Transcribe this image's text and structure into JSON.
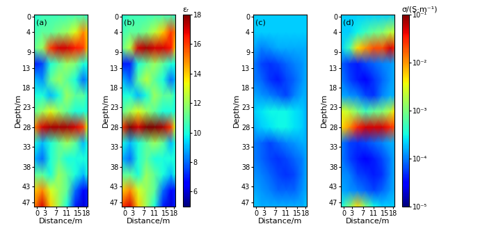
{
  "chart_data": [
    {
      "type": "heatmap",
      "label": "(a)",
      "x_label": "Distance/m",
      "y_label": "Depth/m",
      "x": [
        -1,
        2,
        5,
        8,
        11,
        14,
        17,
        18.5
      ],
      "y": [
        -0.5,
        4,
        8,
        12,
        16,
        20,
        24,
        28,
        32,
        36,
        40,
        44,
        48
      ],
      "xlim": [
        -1,
        18.5
      ],
      "ylim": [
        48,
        -0.5
      ],
      "xticks": [
        0,
        3,
        7,
        11,
        15,
        18
      ],
      "yticks": [
        0,
        4,
        9,
        13,
        18,
        23,
        28,
        33,
        38,
        43,
        47
      ],
      "cells": [
        [
          10,
          10.5,
          10.5,
          10.5,
          10.5,
          10.5,
          10.5,
          10
        ],
        [
          10.5,
          11,
          11,
          11.5,
          12,
          13,
          15,
          14
        ],
        [
          11,
          12,
          16,
          17,
          17,
          16.5,
          16,
          14
        ],
        [
          7,
          7.5,
          10,
          11,
          12,
          11.5,
          10,
          10
        ],
        [
          9,
          8.5,
          11,
          12,
          11,
          10,
          8,
          9
        ],
        [
          10,
          10,
          9,
          10,
          12,
          11,
          11,
          10
        ],
        [
          11,
          12,
          13,
          12,
          11,
          10,
          10,
          10
        ],
        [
          15,
          17,
          17.5,
          17.5,
          17.5,
          17,
          16,
          13
        ],
        [
          10,
          9,
          10,
          11,
          12,
          11,
          9,
          10
        ],
        [
          9,
          8,
          10,
          11,
          10,
          10,
          10,
          10
        ],
        [
          11,
          11,
          10,
          12,
          11,
          10,
          9,
          10
        ],
        [
          14,
          15,
          13,
          12,
          11,
          8,
          6.5,
          7
        ],
        [
          15,
          17,
          14,
          12,
          10,
          7,
          6,
          7
        ]
      ]
    },
    {
      "type": "heatmap",
      "label": "(b)",
      "x_label": "Distance/m",
      "y_label": "Depth/m",
      "x": [
        -1,
        2,
        5,
        8,
        11,
        14,
        17,
        18.5
      ],
      "y": [
        -0.5,
        4,
        8,
        12,
        16,
        20,
        24,
        28,
        32,
        36,
        40,
        44,
        48
      ],
      "xlim": [
        -1,
        18.5
      ],
      "ylim": [
        48,
        -0.5
      ],
      "xticks": [
        0,
        3,
        7,
        11,
        15,
        18
      ],
      "yticks": [
        0,
        4,
        9,
        13,
        18,
        23,
        28,
        33,
        38,
        43,
        47
      ],
      "cells": [
        [
          10,
          10.5,
          10.5,
          10.5,
          10.5,
          10.5,
          10.5,
          10
        ],
        [
          10.5,
          11,
          11,
          11.5,
          12.5,
          14,
          16,
          15
        ],
        [
          11,
          12.5,
          17,
          17.5,
          17,
          17,
          16.5,
          14
        ],
        [
          7,
          7,
          10,
          11,
          12,
          11,
          10,
          10
        ],
        [
          9,
          8,
          11,
          12.5,
          11,
          10,
          8,
          9
        ],
        [
          10,
          10,
          9,
          10,
          12,
          11,
          11,
          10
        ],
        [
          11,
          12,
          13,
          12,
          11,
          10,
          10,
          10
        ],
        [
          16,
          18,
          17,
          18,
          18,
          17.5,
          16,
          13
        ],
        [
          10,
          9,
          10,
          11,
          12,
          11,
          9,
          10
        ],
        [
          9,
          8,
          10,
          11,
          10,
          10,
          10,
          10
        ],
        [
          11,
          11,
          10,
          12,
          11,
          10,
          9,
          10
        ],
        [
          14,
          15,
          13,
          12,
          11,
          8,
          6.5,
          7
        ],
        [
          16,
          17,
          14,
          12,
          10,
          7,
          6,
          7
        ]
      ]
    },
    {
      "type": "heatmap",
      "label": "(c)",
      "x_label": "Distance/m",
      "y_label": "Depth/m",
      "x": [
        -1,
        2,
        5,
        8,
        11,
        14,
        17,
        18.5
      ],
      "y": [
        -0.5,
        4,
        8,
        12,
        16,
        20,
        24,
        28,
        32,
        36,
        40,
        44,
        48
      ],
      "xlim": [
        -1,
        18.5
      ],
      "ylim": [
        48,
        -0.5
      ],
      "xticks": [
        0,
        3,
        7,
        11,
        15,
        18
      ],
      "yticks": [
        0,
        4,
        9,
        13,
        18,
        23,
        28,
        33,
        38,
        43,
        47
      ],
      "cells": [
        [
          0.0002,
          0.0002,
          0.0002,
          0.0002,
          0.0002,
          0.0002,
          0.0002,
          0.0002
        ],
        [
          0.0002,
          0.0002,
          0.0002,
          0.0002,
          0.0002,
          0.0002,
          0.0002,
          0.0002
        ],
        [
          0.00015,
          0.0001,
          0.00012,
          0.00015,
          0.00015,
          0.00015,
          0.00015,
          0.00015
        ],
        [
          0.0001,
          6e-05,
          5e-05,
          6e-05,
          8e-05,
          0.0001,
          0.00012,
          0.00015
        ],
        [
          0.0001,
          8e-05,
          5e-05,
          4e-05,
          6e-05,
          8e-05,
          0.00012,
          0.00015
        ],
        [
          0.00015,
          0.00012,
          0.0001,
          8e-05,
          6e-05,
          0.0001,
          0.00015,
          0.00015
        ],
        [
          0.0002,
          0.00025,
          0.0003,
          0.0003,
          0.0003,
          0.00025,
          0.0002,
          0.00015
        ],
        [
          0.00015,
          0.0002,
          0.00025,
          0.0003,
          0.0003,
          0.00025,
          0.0002,
          0.00015
        ],
        [
          0.0001,
          8e-05,
          6e-05,
          8e-05,
          0.0001,
          0.00012,
          0.00015,
          0.00015
        ],
        [
          0.0001,
          8e-05,
          6e-05,
          5e-05,
          6e-05,
          8e-05,
          0.0001,
          0.00015
        ],
        [
          0.00012,
          0.0001,
          8e-05,
          6e-05,
          5e-05,
          6e-05,
          0.0001,
          0.00015
        ],
        [
          0.00015,
          0.00012,
          0.0001,
          8e-05,
          8e-05,
          8e-05,
          0.00012,
          0.00015
        ],
        [
          0.0002,
          0.00015,
          0.00015,
          0.00015,
          0.00015,
          0.00015,
          0.00015,
          0.0002
        ]
      ]
    },
    {
      "type": "heatmap",
      "label": "(d)",
      "x_label": "Distance/m",
      "y_label": "Depth/m",
      "x": [
        -1,
        2,
        5,
        8,
        11,
        14,
        17,
        18.5
      ],
      "y": [
        -0.5,
        4,
        8,
        12,
        16,
        20,
        24,
        28,
        32,
        36,
        40,
        44,
        48
      ],
      "xlim": [
        -1,
        18.5
      ],
      "ylim": [
        48,
        -0.5
      ],
      "xticks": [
        0,
        3,
        7,
        11,
        15,
        18
      ],
      "yticks": [
        0,
        4,
        9,
        13,
        18,
        23,
        28,
        33,
        38,
        43,
        47
      ],
      "cells": [
        [
          0.0002,
          0.0002,
          0.0002,
          0.0002,
          0.0002,
          0.0002,
          0.0002,
          0.0002
        ],
        [
          0.0002,
          0.0002,
          0.0003,
          0.0005,
          0.0008,
          0.001,
          0.002,
          0.002
        ],
        [
          0.0002,
          0.0005,
          0.005,
          0.01,
          0.02,
          0.02,
          0.05,
          0.03
        ],
        [
          8e-05,
          5e-05,
          4e-05,
          6e-05,
          8e-05,
          0.0001,
          0.00012,
          0.00015
        ],
        [
          0.0001,
          6e-05,
          4e-05,
          3e-05,
          5e-05,
          8e-05,
          0.00012,
          0.00015
        ],
        [
          0.00015,
          0.00012,
          0.0001,
          6e-05,
          5e-05,
          0.0001,
          0.00015,
          0.00015
        ],
        [
          0.003,
          0.002,
          0.001,
          0.0005,
          0.0008,
          0.001,
          0.002,
          0.005
        ],
        [
          0.005,
          0.01,
          0.03,
          0.05,
          0.05,
          0.05,
          0.03,
          0.02
        ],
        [
          0.0001,
          6e-05,
          5e-05,
          6e-05,
          8e-05,
          0.0001,
          0.00015,
          0.00015
        ],
        [
          0.0001,
          6e-05,
          4e-05,
          3e-05,
          4e-05,
          6e-05,
          0.0001,
          0.00015
        ],
        [
          0.00012,
          0.0001,
          6e-05,
          5e-05,
          4e-05,
          5e-05,
          0.0001,
          0.00015
        ],
        [
          0.00015,
          0.00012,
          0.0001,
          8e-05,
          6e-05,
          8e-05,
          0.00012,
          0.00015
        ],
        [
          0.0003,
          0.001,
          0.005,
          0.001,
          0.0003,
          0.0002,
          0.0002,
          0.0002
        ]
      ]
    }
  ],
  "colorbars": [
    {
      "label": "εᵣ",
      "panels": [
        "(a)",
        "(b)"
      ],
      "range": [
        5,
        18
      ],
      "ticks": [
        6,
        8,
        10,
        12,
        14,
        16,
        18
      ]
    },
    {
      "label": "σ/(S·m⁻¹)",
      "panels": [
        "(c)",
        "(d)"
      ],
      "range": [
        1e-05,
        0.1
      ],
      "log": true,
      "ticks": [
        {
          "value": 1e-05,
          "label": "10⁻⁵"
        },
        {
          "value": 0.0001,
          "label": "10⁻⁴"
        },
        {
          "value": 0.001,
          "label": "10⁻³"
        },
        {
          "value": 0.01,
          "label": "10⁻²"
        },
        {
          "value": 0.1,
          "label": "10⁻¹"
        }
      ]
    }
  ]
}
